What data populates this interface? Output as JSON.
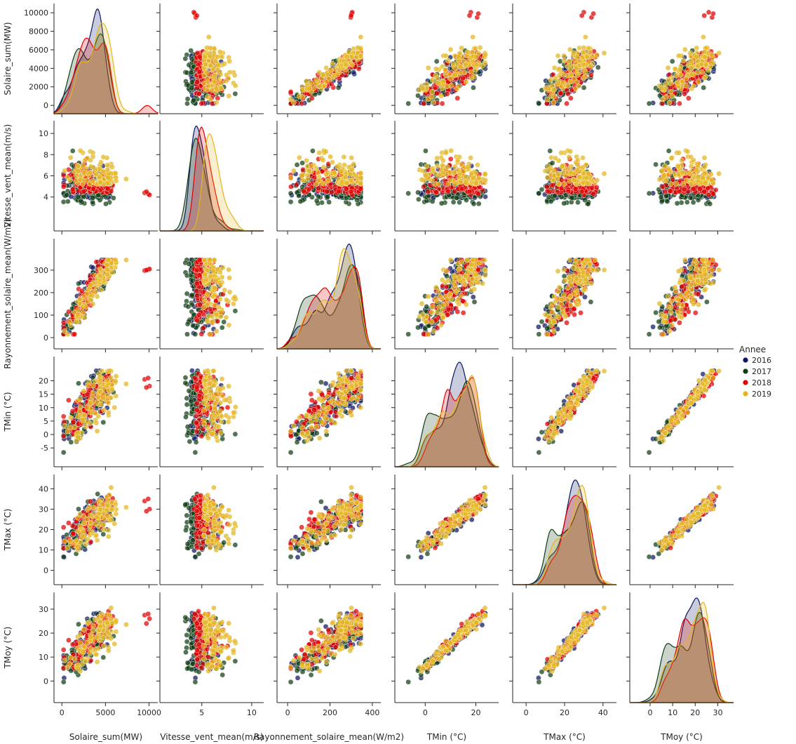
{
  "chart_data": {
    "type": "scatter",
    "kind": "pairplot",
    "diagonal": "kde",
    "grid": false,
    "legend_placement": "right",
    "legend_title": "Annee",
    "series": [
      {
        "name": "2016",
        "color": "#0b1560"
      },
      {
        "name": "2017",
        "color": "#0f3d12"
      },
      {
        "name": "2018",
        "color": "#e00000"
      },
      {
        "name": "2019",
        "color": "#e3b51f"
      }
    ],
    "variables": [
      {
        "name": "Solaire_sum(MW)",
        "range": [
          -900,
          11000
        ],
        "ticks": [
          0,
          5000,
          10000
        ],
        "tick_labels": [
          "0",
          "5000",
          "10000"
        ],
        "row_ticks": [
          0,
          2000,
          4000,
          6000,
          8000,
          10000
        ],
        "row_tick_labels": [
          "0",
          "2000",
          "4000",
          "6000",
          "8000",
          "10000"
        ]
      },
      {
        "name": "Vitesse_vent_mean(m/s)",
        "range": [
          0.8,
          11.2
        ],
        "ticks": [
          5,
          10
        ],
        "tick_labels": [
          "5",
          "10"
        ],
        "row_ticks": [
          4,
          6,
          8,
          10
        ],
        "row_tick_labels": [
          "4",
          "6",
          "8",
          "10"
        ]
      },
      {
        "name": "Rayonnement_solaire_mean(W/m2)",
        "range": [
          -50,
          440
        ],
        "ticks": [
          0,
          200,
          400
        ],
        "tick_labels": [
          "0",
          "200",
          "400"
        ],
        "row_ticks": [
          0,
          100,
          200,
          300
        ],
        "row_tick_labels": [
          "0",
          "100",
          "200",
          "300"
        ]
      },
      {
        "name": "TMin (°C)",
        "range": [
          -12,
          29
        ],
        "ticks": [
          0,
          20
        ],
        "tick_labels": [
          "0",
          "20"
        ],
        "row_ticks": [
          -5,
          0,
          5,
          10,
          15,
          20
        ],
        "row_tick_labels": [
          "-5",
          "0",
          "5",
          "10",
          "15",
          "20"
        ]
      },
      {
        "name": "TMax (°C)",
        "range": [
          -7,
          47
        ],
        "ticks": [
          0,
          20,
          40
        ],
        "tick_labels": [
          "0",
          "20",
          "40"
        ],
        "row_ticks": [
          0,
          10,
          20,
          30,
          40
        ],
        "row_tick_labels": [
          "0",
          "10",
          "20",
          "30",
          "40"
        ]
      },
      {
        "name": "TMoy (°C)",
        "range": [
          -9,
          37
        ],
        "ticks": [
          0,
          10,
          20,
          30
        ],
        "tick_labels": [
          "0",
          "10",
          "20",
          "30"
        ],
        "row_ticks": [
          0,
          10,
          20,
          30
        ],
        "row_tick_labels": [
          "0",
          "10",
          "20",
          "30"
        ]
      }
    ]
  }
}
